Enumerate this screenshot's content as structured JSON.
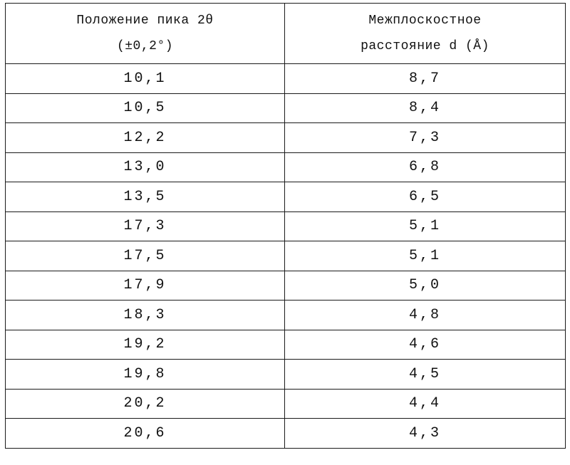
{
  "table": {
    "headers": [
      {
        "line1": "Положение пика 2θ",
        "line2": "(±0,2°)"
      },
      {
        "line1": "Межплоскостное",
        "line2": "расстояние d (Å)"
      }
    ],
    "rows": [
      {
        "two_theta": "10,1",
        "d_spacing": "8,7"
      },
      {
        "two_theta": "10,5",
        "d_spacing": "8,4"
      },
      {
        "two_theta": "12,2",
        "d_spacing": "7,3"
      },
      {
        "two_theta": "13,0",
        "d_spacing": "6,8"
      },
      {
        "two_theta": "13,5",
        "d_spacing": "6,5"
      },
      {
        "two_theta": "17,3",
        "d_spacing": "5,1"
      },
      {
        "two_theta": "17,5",
        "d_spacing": "5,1"
      },
      {
        "two_theta": "17,9",
        "d_spacing": "5,0"
      },
      {
        "two_theta": "18,3",
        "d_spacing": "4,8"
      },
      {
        "two_theta": "19,2",
        "d_spacing": "4,6"
      },
      {
        "two_theta": "19,8",
        "d_spacing": "4,5"
      },
      {
        "two_theta": "20,2",
        "d_spacing": "4,4"
      },
      {
        "two_theta": "20,6",
        "d_spacing": "4,3"
      }
    ]
  }
}
